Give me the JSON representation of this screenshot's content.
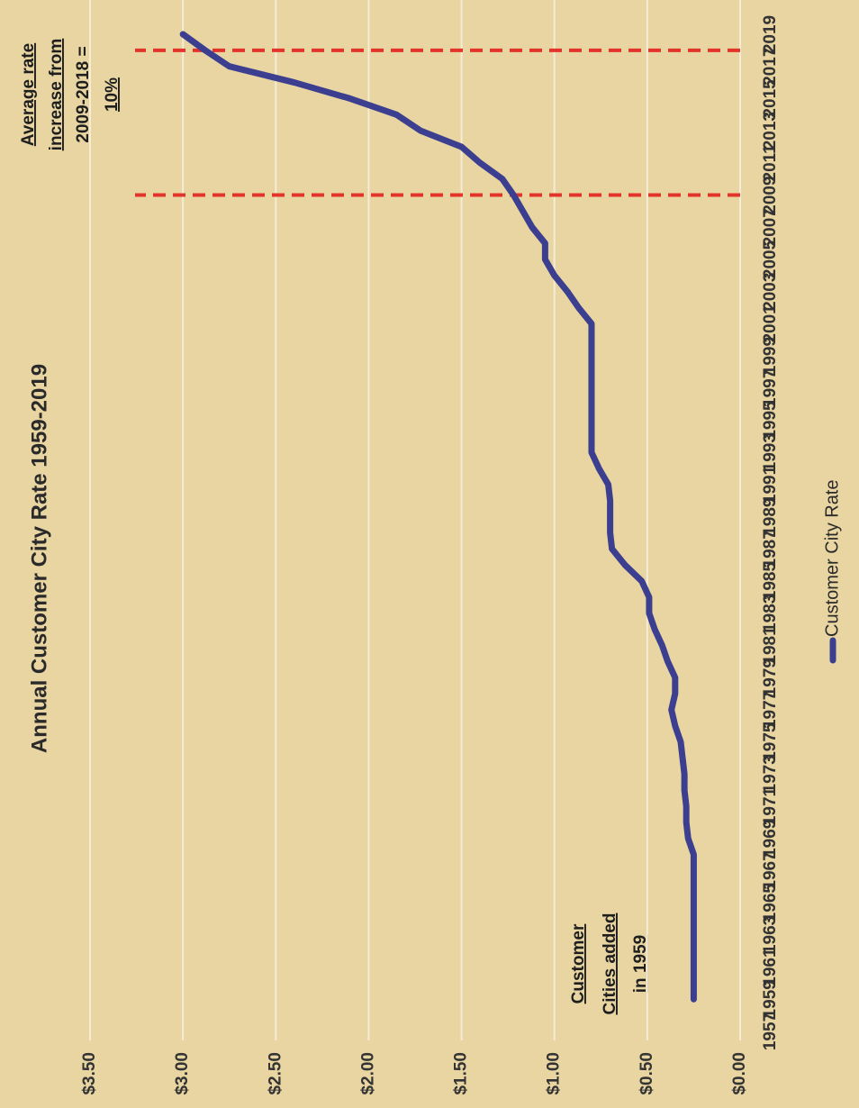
{
  "chart_data": {
    "type": "line",
    "title": "Annual Customer City Rate 1959-2019",
    "x": [
      1959,
      1960,
      1961,
      1962,
      1963,
      1964,
      1965,
      1966,
      1967,
      1968,
      1969,
      1970,
      1971,
      1972,
      1973,
      1974,
      1975,
      1976,
      1977,
      1978,
      1979,
      1980,
      1981,
      1982,
      1983,
      1984,
      1985,
      1986,
      1987,
      1988,
      1989,
      1990,
      1991,
      1992,
      1993,
      1994,
      1995,
      1996,
      1997,
      1998,
      1999,
      2000,
      2001,
      2002,
      2003,
      2004,
      2005,
      2006,
      2007,
      2008,
      2009,
      2010,
      2011,
      2012,
      2013,
      2014,
      2015,
      2016,
      2017,
      2018,
      2019
    ],
    "series": [
      {
        "name": "Customer City Rate",
        "color": "#3c3f8f",
        "values": [
          0.25,
          0.25,
          0.25,
          0.25,
          0.25,
          0.25,
          0.25,
          0.25,
          0.25,
          0.25,
          0.28,
          0.29,
          0.29,
          0.3,
          0.3,
          0.31,
          0.32,
          0.35,
          0.37,
          0.35,
          0.35,
          0.39,
          0.42,
          0.46,
          0.49,
          0.49,
          0.53,
          0.62,
          0.69,
          0.7,
          0.7,
          0.7,
          0.71,
          0.76,
          0.8,
          0.8,
          0.8,
          0.8,
          0.8,
          0.8,
          0.8,
          0.8,
          0.8,
          0.87,
          0.93,
          1.0,
          1.05,
          1.05,
          1.12,
          1.17,
          1.22,
          1.28,
          1.4,
          1.5,
          1.72,
          1.85,
          2.1,
          2.4,
          2.75,
          2.88,
          3.0
        ]
      }
    ],
    "xlim": [
      1957,
      2019
    ],
    "xticks": [
      1957,
      1959,
      1961,
      1963,
      1965,
      1967,
      1969,
      1971,
      1973,
      1975,
      1977,
      1979,
      1981,
      1983,
      1985,
      1987,
      1989,
      1991,
      1993,
      1995,
      1997,
      1999,
      2001,
      2003,
      2005,
      2007,
      2009,
      2011,
      2013,
      2015,
      2017,
      2019
    ],
    "ylim": [
      0,
      3.5
    ],
    "yticks": [
      {
        "value": 0,
        "label": "$0.00"
      },
      {
        "value": 0.5,
        "label": "$0.50"
      },
      {
        "value": 1,
        "label": "$1.00"
      },
      {
        "value": 1.5,
        "label": "$1.50"
      },
      {
        "value": 2,
        "label": "$2.00"
      },
      {
        "value": 2.5,
        "label": "$2.50"
      },
      {
        "value": 3,
        "label": "$3.00"
      },
      {
        "value": 3.5,
        "label": "$3.50"
      }
    ],
    "grid": true,
    "reference_lines_x": [
      2009,
      2018
    ],
    "reference_color": "#e3342b",
    "annotations": [
      [
        "Average rate",
        "increase from",
        "2009-2018 =",
        "10%"
      ],
      [
        "Customer",
        "Cities added",
        "in 1959"
      ]
    ],
    "legend": "bottom"
  }
}
